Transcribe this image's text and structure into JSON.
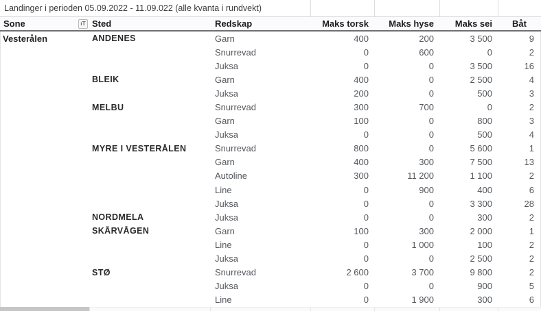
{
  "title": "Landinger i perioden 05.09.2022 - 11.09.022 (alle kvanta i rundvekt)",
  "columns": [
    {
      "key": "sone",
      "label": "Sone"
    },
    {
      "key": "sted",
      "label": "Sted"
    },
    {
      "key": "redskap",
      "label": "Redskap"
    },
    {
      "key": "torsk",
      "label": "Maks torsk"
    },
    {
      "key": "hyse",
      "label": "Maks hyse"
    },
    {
      "key": "sei",
      "label": "Maks sei"
    },
    {
      "key": "bat",
      "label": "Båt"
    }
  ],
  "filter_icon_glyph": "ıT",
  "colors": {
    "header_border": "#6f6f6f",
    "light_border": "#d6d6d6",
    "body_text": "#54575c",
    "bold_text": "#242424"
  },
  "rows": [
    {
      "sone": "Vesterålen",
      "sted": "ANDENES",
      "redskap": "Garn",
      "torsk": "400",
      "hyse": "200",
      "sei": "3 500",
      "bat": "9"
    },
    {
      "sone": "",
      "sted": "",
      "redskap": "Snurrevad",
      "torsk": "0",
      "hyse": "600",
      "sei": "0",
      "bat": "2"
    },
    {
      "sone": "",
      "sted": "",
      "redskap": "Juksa",
      "torsk": "0",
      "hyse": "0",
      "sei": "3 500",
      "bat": "16"
    },
    {
      "sone": "",
      "sted": "BLEIK",
      "redskap": "Garn",
      "torsk": "400",
      "hyse": "0",
      "sei": "2 500",
      "bat": "4"
    },
    {
      "sone": "",
      "sted": "",
      "redskap": "Juksa",
      "torsk": "200",
      "hyse": "0",
      "sei": "500",
      "bat": "3"
    },
    {
      "sone": "",
      "sted": "MELBU",
      "redskap": "Snurrevad",
      "torsk": "300",
      "hyse": "700",
      "sei": "0",
      "bat": "2"
    },
    {
      "sone": "",
      "sted": "",
      "redskap": "Garn",
      "torsk": "100",
      "hyse": "0",
      "sei": "800",
      "bat": "3"
    },
    {
      "sone": "",
      "sted": "",
      "redskap": "Juksa",
      "torsk": "0",
      "hyse": "0",
      "sei": "500",
      "bat": "4"
    },
    {
      "sone": "",
      "sted": "MYRE I VESTERÅLEN",
      "redskap": "Snurrevad",
      "torsk": "800",
      "hyse": "0",
      "sei": "5 600",
      "bat": "1"
    },
    {
      "sone": "",
      "sted": "",
      "redskap": "Garn",
      "torsk": "400",
      "hyse": "300",
      "sei": "7 500",
      "bat": "13"
    },
    {
      "sone": "",
      "sted": "",
      "redskap": "Autoline",
      "torsk": "300",
      "hyse": "11 200",
      "sei": "1 100",
      "bat": "2"
    },
    {
      "sone": "",
      "sted": "",
      "redskap": "Line",
      "torsk": "0",
      "hyse": "900",
      "sei": "400",
      "bat": "6"
    },
    {
      "sone": "",
      "sted": "",
      "redskap": "Juksa",
      "torsk": "0",
      "hyse": "0",
      "sei": "3 300",
      "bat": "28"
    },
    {
      "sone": "",
      "sted": "NORDMELA",
      "redskap": "Juksa",
      "torsk": "0",
      "hyse": "0",
      "sei": "300",
      "bat": "2"
    },
    {
      "sone": "",
      "sted": "SKÅRVÅGEN",
      "redskap": "Garn",
      "torsk": "100",
      "hyse": "300",
      "sei": "2 000",
      "bat": "1"
    },
    {
      "sone": "",
      "sted": "",
      "redskap": "Line",
      "torsk": "0",
      "hyse": "1 000",
      "sei": "100",
      "bat": "2"
    },
    {
      "sone": "",
      "sted": "",
      "redskap": "Juksa",
      "torsk": "0",
      "hyse": "0",
      "sei": "2 500",
      "bat": "2"
    },
    {
      "sone": "",
      "sted": "STØ",
      "redskap": "Snurrevad",
      "torsk": "2 600",
      "hyse": "3 700",
      "sei": "9 800",
      "bat": "2"
    },
    {
      "sone": "",
      "sted": "",
      "redskap": "Juksa",
      "torsk": "0",
      "hyse": "0",
      "sei": "900",
      "bat": "5"
    },
    {
      "sone": "",
      "sted": "",
      "redskap": "Line",
      "torsk": "0",
      "hyse": "1 900",
      "sei": "300",
      "bat": "6"
    }
  ]
}
